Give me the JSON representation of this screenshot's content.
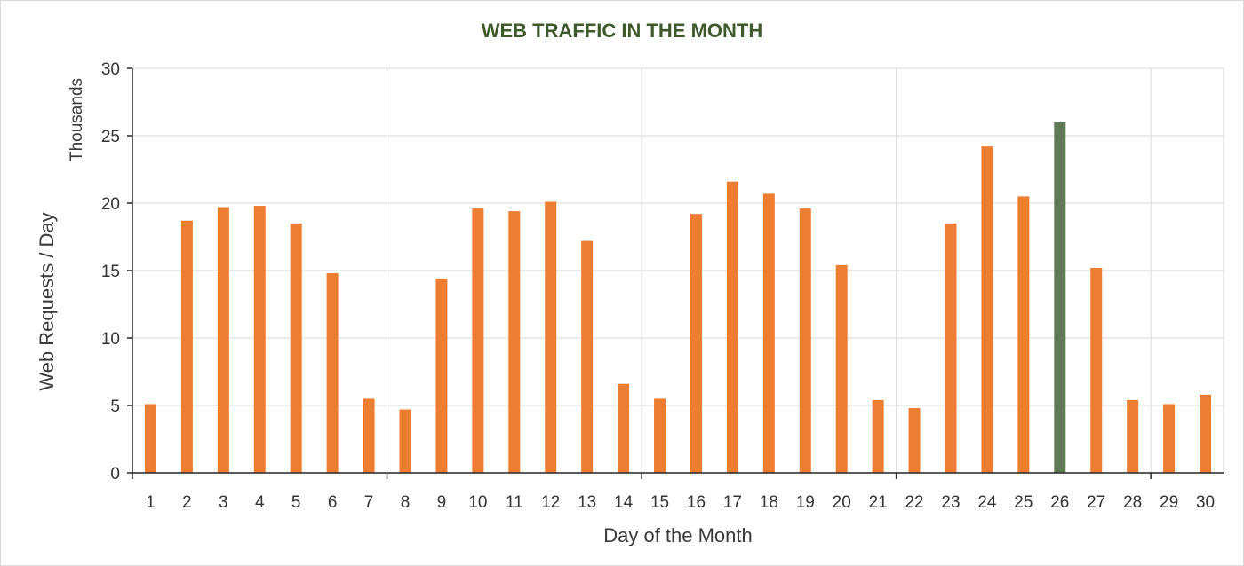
{
  "chart_data": {
    "type": "bar",
    "title": "WEB TRAFFIC IN THE MONTH",
    "xlabel": "Day of the Month",
    "ylabel": "Web Requests / Day",
    "yunits": "Thousands",
    "ylim": [
      0,
      30
    ],
    "yticks": [
      "0",
      "5",
      "10",
      "15",
      "20",
      "25",
      "30"
    ],
    "categories": [
      "1",
      "2",
      "3",
      "4",
      "5",
      "6",
      "7",
      "8",
      "9",
      "10",
      "11",
      "12",
      "13",
      "14",
      "15",
      "16",
      "17",
      "18",
      "19",
      "20",
      "21",
      "22",
      "23",
      "24",
      "25",
      "26",
      "27",
      "28",
      "29",
      "30"
    ],
    "values": [
      5.1,
      18.7,
      19.7,
      19.8,
      18.5,
      14.8,
      5.5,
      4.7,
      14.4,
      19.6,
      19.4,
      20.1,
      17.2,
      6.6,
      5.5,
      19.2,
      21.6,
      20.7,
      19.6,
      15.4,
      5.4,
      4.8,
      18.5,
      24.2,
      20.5,
      26.0,
      15.2,
      5.4,
      5.1,
      5.8
    ],
    "highlight_category": "26",
    "colors": {
      "bar": "#ed7d31",
      "highlight": "#607a56",
      "grid": "#d9d9d9",
      "axis": "#262626",
      "title": "#3f5a2a"
    },
    "grid": true
  }
}
